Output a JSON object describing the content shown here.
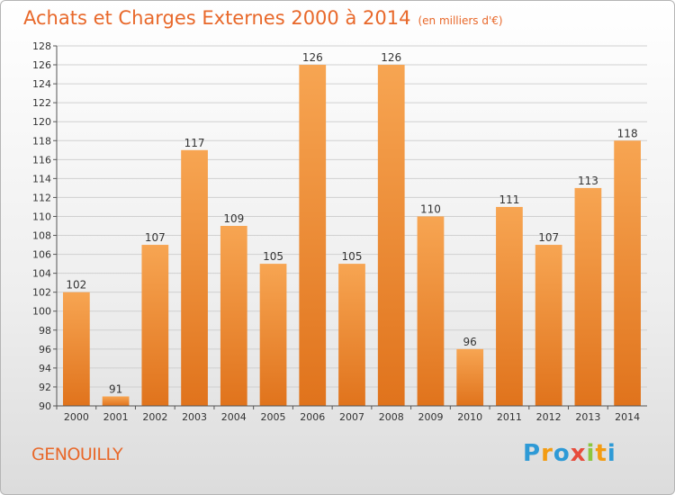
{
  "page": {
    "title": "Achats et Charges Externes 2000 à 2014",
    "title_unit": "(en milliers d'€)",
    "city": "GENOUILLY",
    "logo": {
      "p": "P",
      "r": "r",
      "o": "o",
      "x": "x",
      "i1": "i",
      "t": "t",
      "i2": "i"
    }
  },
  "chart_data": {
    "type": "bar",
    "title": "Achats et Charges Externes 2000 à 2014",
    "subtitle": "(en milliers d'€)",
    "xlabel": "",
    "ylabel": "",
    "categories": [
      "2000",
      "2001",
      "2002",
      "2003",
      "2004",
      "2005",
      "2006",
      "2007",
      "2008",
      "2009",
      "2010",
      "2011",
      "2012",
      "2013",
      "2014"
    ],
    "values": [
      102,
      91,
      107,
      117,
      109,
      105,
      126,
      105,
      126,
      110,
      96,
      111,
      107,
      113,
      118
    ],
    "ylim": [
      90,
      128
    ],
    "yticks": [
      90,
      92,
      94,
      96,
      98,
      100,
      102,
      104,
      106,
      108,
      110,
      112,
      114,
      116,
      118,
      120,
      122,
      124,
      126,
      128
    ],
    "grid": true,
    "legend": "none",
    "colors": {
      "bar_top": "#f7a552",
      "bar_bottom": "#e0731c",
      "grid": "#d0d0d0",
      "axis": "#555555"
    }
  }
}
